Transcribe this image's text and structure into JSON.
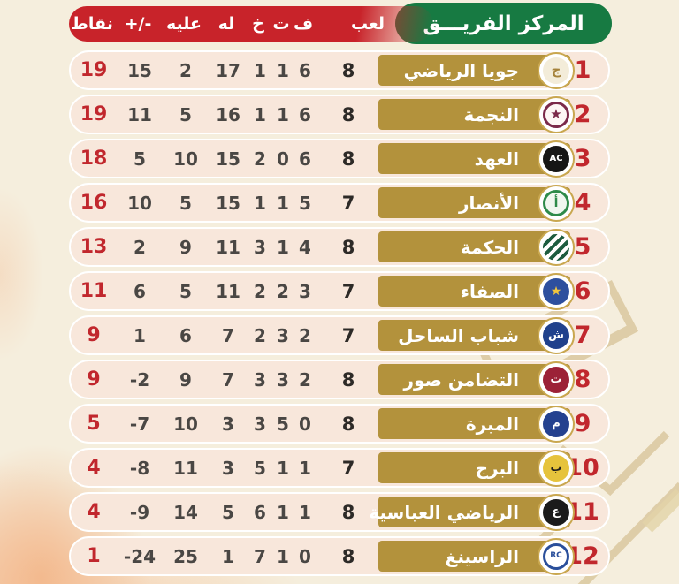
{
  "colors": {
    "page_bg": "#f5eedd",
    "header_green": "#177a42",
    "header_red": "#c8232a",
    "row_bg": "#f8e7db",
    "team_bar_gold": "#b3923c",
    "accent_red": "#c1272d",
    "stat_gray": "#4a4744",
    "watermark_tan": "#c8ad74"
  },
  "chart_data": {
    "type": "table",
    "rank_team_label": "المركز الفريـــق",
    "columns": [
      {
        "key": "points",
        "label": "نقاط"
      },
      {
        "key": "diff",
        "label": "+/-"
      },
      {
        "key": "against",
        "label": "عليه"
      },
      {
        "key": "for",
        "label": "له"
      },
      {
        "key": "losses",
        "label": "خ"
      },
      {
        "key": "draws",
        "label": "ت"
      },
      {
        "key": "wins",
        "label": "ف"
      },
      {
        "key": "played",
        "label": "لعب"
      }
    ],
    "rows": [
      {
        "rank": 1,
        "name": "جويا الرياضي",
        "played": 8,
        "wins": 6,
        "draws": 1,
        "losses": 1,
        "for": 17,
        "against": 2,
        "diff": 15,
        "points": 19,
        "logo": {
          "icon": "joya-club-logo-icon",
          "disc": "#f3ecd9",
          "glyph": "ج",
          "glyph_color": "#a5823a",
          "glyph_size": 15
        }
      },
      {
        "rank": 2,
        "name": "النجمة",
        "played": 8,
        "wins": 6,
        "draws": 1,
        "losses": 1,
        "for": 16,
        "against": 5,
        "diff": 11,
        "points": 19,
        "logo": {
          "icon": "nejmeh-club-logo-icon",
          "disc": "#fdf7f5",
          "ring": "#7b2a4a",
          "glyph": "★",
          "glyph_color": "#7b2a4a",
          "glyph_size": 15
        }
      },
      {
        "rank": 3,
        "name": "العهد",
        "played": 8,
        "wins": 6,
        "draws": 0,
        "losses": 2,
        "for": 15,
        "against": 10,
        "diff": 5,
        "points": 18,
        "logo": {
          "icon": "ahed-club-logo-icon",
          "disc": "#161616",
          "glyph": "AC",
          "glyph_color": "#ffffff",
          "glyph_size": 10
        }
      },
      {
        "rank": 4,
        "name": "الأنصار",
        "played": 7,
        "wins": 5,
        "draws": 1,
        "losses": 1,
        "for": 15,
        "against": 5,
        "diff": 10,
        "points": 16,
        "logo": {
          "icon": "ansar-club-logo-icon",
          "disc": "#f0f7f0",
          "ring": "#2e8b4a",
          "glyph": "أ",
          "glyph_color": "#2e8b4a",
          "glyph_size": 14
        }
      },
      {
        "rank": 5,
        "name": "الحكمة",
        "played": 8,
        "wins": 4,
        "draws": 1,
        "losses": 3,
        "for": 11,
        "against": 9,
        "diff": 2,
        "points": 13,
        "logo": {
          "icon": "hekmeh-club-logo-icon",
          "disc": "#ffffff",
          "stripes": [
            "#1d5c3f",
            "#ffffff"
          ],
          "glyph": "",
          "glyph_color": "#1d5c3f",
          "glyph_size": 12
        }
      },
      {
        "rank": 6,
        "name": "الصفاء",
        "played": 7,
        "wins": 3,
        "draws": 2,
        "losses": 2,
        "for": 11,
        "against": 5,
        "diff": 6,
        "points": 11,
        "logo": {
          "icon": "safa-club-logo-icon",
          "disc": "#2d4f9e",
          "glyph": "★",
          "glyph_color": "#f2c63d",
          "glyph_size": 14
        }
      },
      {
        "rank": 7,
        "name": "شباب الساحل",
        "played": 7,
        "wins": 2,
        "draws": 3,
        "losses": 2,
        "for": 7,
        "against": 6,
        "diff": 1,
        "points": 9,
        "logo": {
          "icon": "shabab-sahel-club-logo-icon",
          "disc": "#20418c",
          "glyph": "ش",
          "glyph_color": "#ffffff",
          "glyph_size": 13
        }
      },
      {
        "rank": 8,
        "name": "التضامن صور",
        "played": 8,
        "wins": 2,
        "draws": 3,
        "losses": 3,
        "for": 7,
        "against": 9,
        "diff": -2,
        "points": 9,
        "logo": {
          "icon": "tadamon-sour-club-logo-icon",
          "disc": "#9c2137",
          "glyph": "ت",
          "glyph_color": "#ffffff",
          "glyph_size": 13
        }
      },
      {
        "rank": 9,
        "name": "المبرة",
        "played": 8,
        "wins": 0,
        "draws": 5,
        "losses": 3,
        "for": 3,
        "against": 10,
        "diff": -7,
        "points": 5,
        "logo": {
          "icon": "mabarra-club-logo-icon",
          "disc": "#24418f",
          "glyph": "م",
          "glyph_color": "#ffffff",
          "glyph_size": 13
        }
      },
      {
        "rank": 10,
        "name": "البرج",
        "played": 7,
        "wins": 1,
        "draws": 1,
        "losses": 5,
        "for": 3,
        "against": 11,
        "diff": -8,
        "points": 4,
        "logo": {
          "icon": "bourj-club-logo-icon",
          "disc": "#e6c33c",
          "glyph": "ب",
          "glyph_color": "#221f1c",
          "glyph_size": 13
        }
      },
      {
        "rank": 11,
        "name": "الرياضي العباسية",
        "played": 8,
        "wins": 1,
        "draws": 1,
        "losses": 6,
        "for": 5,
        "against": 14,
        "diff": -9,
        "points": 4,
        "logo": {
          "icon": "riyadi-abbasiya-club-logo-icon",
          "disc": "#1b1b1b",
          "glyph": "ع",
          "glyph_color": "#ffffff",
          "glyph_size": 13
        }
      },
      {
        "rank": 12,
        "name": "الراسينغ",
        "played": 8,
        "wins": 0,
        "draws": 1,
        "losses": 7,
        "for": 1,
        "against": 25,
        "diff": -24,
        "points": 1,
        "logo": {
          "icon": "racing-club-logo-icon",
          "disc": "#ffffff",
          "ring": "#2a4f9b",
          "glyph": "RC",
          "glyph_color": "#2a4f9b",
          "glyph_size": 9
        }
      }
    ]
  }
}
